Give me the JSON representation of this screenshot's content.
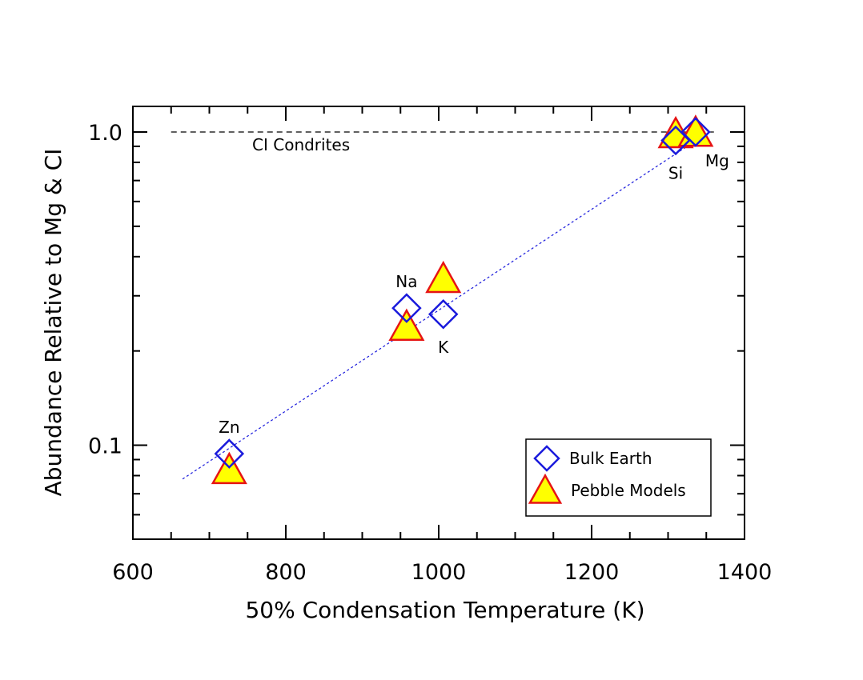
{
  "chart_data": {
    "type": "scatter",
    "xlabel": "50% Condensation Temperature (K)",
    "ylabel": "Abundance Relative to Mg & CI",
    "xlim": [
      600,
      1400
    ],
    "ylim": [
      0.05,
      1.25
    ],
    "yscale": "log",
    "grid": false,
    "x_ticks": [
      "600",
      "800",
      "1000",
      "1200",
      "1400"
    ],
    "y_ticks": [
      "0.1",
      "1.0"
    ],
    "reference_line": {
      "label": "CI Condrites",
      "y": 1.0,
      "x_range": [
        650,
        1360
      ]
    },
    "fit_line": {
      "x_range": [
        665,
        1325
      ],
      "y_range": [
        0.078,
        0.9
      ]
    },
    "series": [
      {
        "name": "Bulk Earth",
        "marker": "diamond",
        "color": "#1a1adc",
        "points": [
          {
            "element": "Zn",
            "x": 726,
            "y": 0.094
          },
          {
            "element": "Na",
            "x": 958,
            "y": 0.274
          },
          {
            "element": "K",
            "x": 1006,
            "y": 0.262
          },
          {
            "element": "Si",
            "x": 1310,
            "y": 0.94
          },
          {
            "element": "Mg",
            "x": 1336,
            "y": 1.0
          }
        ]
      },
      {
        "name": "Pebble Models",
        "marker": "triangle",
        "color": "#e61414",
        "fill": "#ffff00",
        "points": [
          {
            "element": "Zn",
            "x": 726,
            "y": 0.083
          },
          {
            "element": "Na",
            "x": 958,
            "y": 0.238
          },
          {
            "element": "K",
            "x": 1006,
            "y": 0.338
          },
          {
            "element": "Si",
            "x": 1310,
            "y": 0.98
          },
          {
            "element": "Mg",
            "x": 1336,
            "y": 0.99
          }
        ]
      }
    ],
    "point_labels": [
      {
        "text": "Zn",
        "x": 726,
        "y": 0.094,
        "position": "above"
      },
      {
        "text": "Na",
        "x": 958,
        "y": 0.274,
        "position": "above"
      },
      {
        "text": "K",
        "x": 1006,
        "y": 0.262,
        "position": "below"
      },
      {
        "text": "Si",
        "x": 1310,
        "y": 0.94,
        "position": "below"
      },
      {
        "text": "Mg",
        "x": 1336,
        "y": 1.0,
        "position": "below-right"
      }
    ],
    "legend": {
      "placement": "bottom-right",
      "entries": [
        {
          "label": "Bulk Earth",
          "marker": "diamond"
        },
        {
          "label": "Pebble Models",
          "marker": "triangle"
        }
      ]
    }
  }
}
